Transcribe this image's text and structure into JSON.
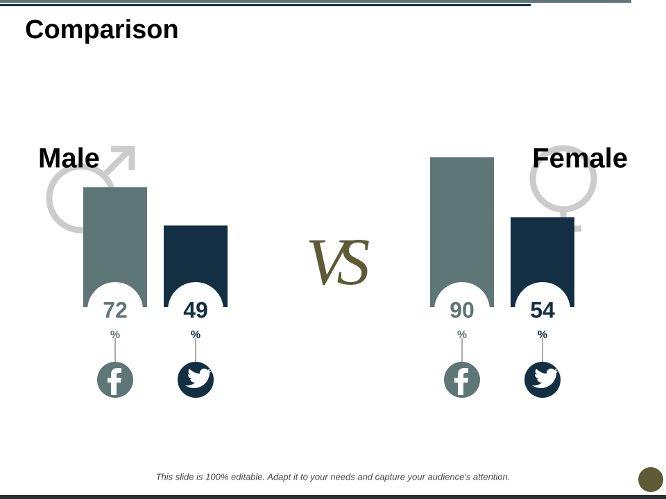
{
  "title": "Comparison",
  "vs": "VS",
  "unit": "%",
  "footer": "This slide is 100% editable. Adapt it to your needs and capture your audience's attention.",
  "groups": [
    {
      "label": "Male",
      "items": [
        {
          "value": 72,
          "color": "#5f7677"
        },
        {
          "value": 49,
          "color": "#132f44"
        }
      ]
    },
    {
      "label": "Female",
      "items": [
        {
          "value": 90,
          "color": "#5f7677"
        },
        {
          "value": 54,
          "color": "#132f44"
        }
      ]
    }
  ]
}
